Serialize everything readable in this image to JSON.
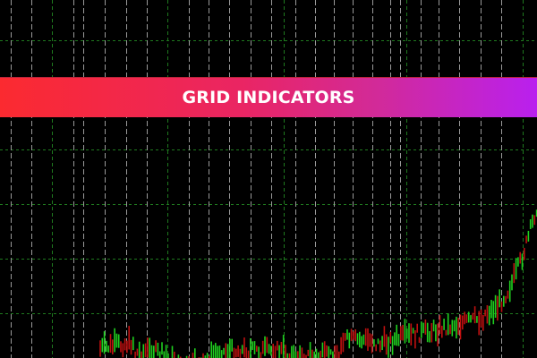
{
  "banner": {
    "title": "GRID INDICATORS"
  },
  "colors": {
    "background": "#000000",
    "grid_major": "#9a9a9a",
    "grid_minor": "#1f7a1f",
    "bull_candle": "#1fd01f",
    "bear_candle": "#c01010",
    "banner_start": "#fb2a30",
    "banner_end": "#b920ef"
  }
}
